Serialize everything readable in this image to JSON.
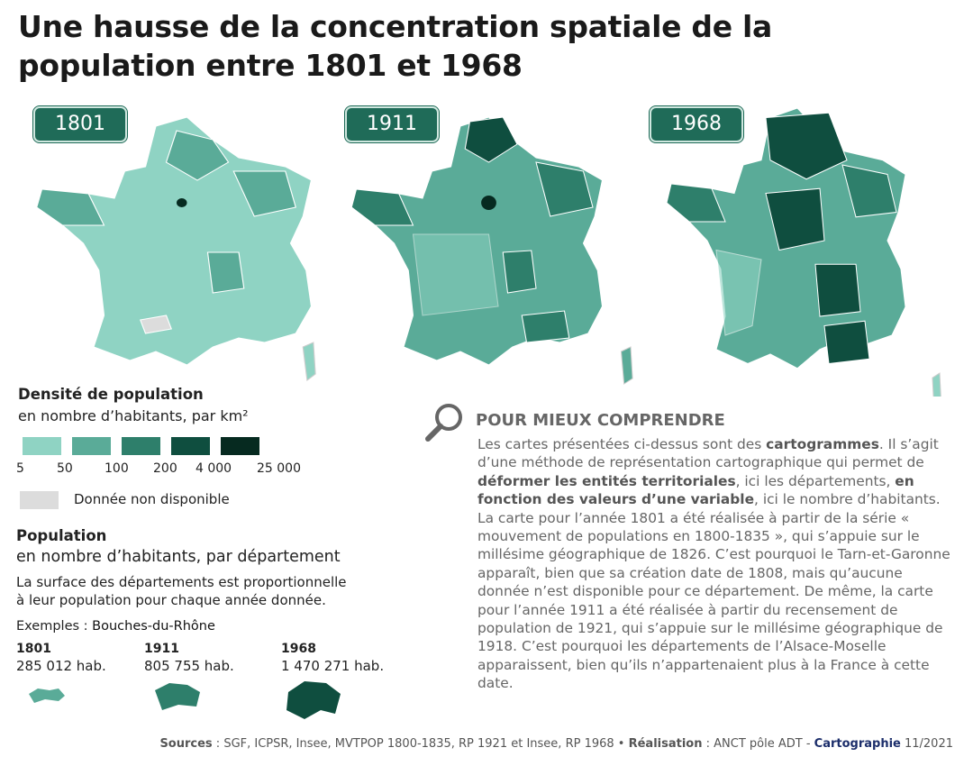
{
  "header": {
    "title": "Une hausse de la concentration spatiale de la population entre 1801 et 1968"
  },
  "maps": [
    {
      "year": "1801"
    },
    {
      "year": "1911"
    },
    {
      "year": "1968"
    }
  ],
  "density_legend": {
    "title": "Densité de population",
    "subtitle": "en nombre d’habitants, par km²",
    "colors": [
      "#8fd3c3",
      "#5aab98",
      "#2e7f6b",
      "#0f4e3f",
      "#062a20"
    ],
    "ticks": [
      "5",
      "50",
      "100",
      "200",
      "4 000",
      "25 000"
    ],
    "missing": {
      "color": "#dcdcdc",
      "label": "Donnée non disponible"
    }
  },
  "population_legend": {
    "title": "Population",
    "subtitle": "en nombre d’habitants, par département",
    "description": [
      "La surface des départements est proportionnelle",
      "à leur population pour chaque année donnée."
    ],
    "examples_label": "Exemples :",
    "examples_place": "Bouches-du-Rhône",
    "examples": [
      {
        "year": "1801",
        "value": "285 012 hab."
      },
      {
        "year": "1911",
        "value": "805 755 hab."
      },
      {
        "year": "1968",
        "value": "1 470 271 hab."
      }
    ]
  },
  "explanation": {
    "heading": "POUR MIEUX COMPRENDRE",
    "segments": [
      {
        "text": "Les cartes présentées ci-dessus sont des ",
        "bold": false
      },
      {
        "text": "cartogrammes",
        "bold": true
      },
      {
        "text": ". Il s’agit d’une méthode de représentation cartographique qui permet de ",
        "bold": false
      },
      {
        "text": "déformer les entités territoriales",
        "bold": true
      },
      {
        "text": ", ici les départements, ",
        "bold": false
      },
      {
        "text": "en fonction des valeurs d’une variable",
        "bold": true
      },
      {
        "text": ", ici le nombre d’habitants. La carte pour l’année 1801 a été réalisée à partir de la série « mouvement de populations en 1800-1835 », qui s’appuie sur le millésime géographique de 1826. C’est pourquoi le Tarn-et-Garonne apparaît, bien que sa création date de 1808, mais qu’aucune donnée n’est disponible pour ce département. De même, la carte pour l’année 1911 a été réalisée à partir du recensement de population de 1921, qui s’appuie sur le millésime géographique de 1918. C’est pourquoi les départements de l’Alsace-Moselle apparaissent, bien qu’ils n’appartenaient plus à la France à cette date.",
        "bold": false
      }
    ]
  },
  "footer": {
    "segments": [
      {
        "text": "Sources",
        "style": "bold"
      },
      {
        "text": " : SGF, ICPSR, Insee, MVTPOP 1800-1835, RP 1921 et Insee, RP 1968 • ",
        "style": "normal"
      },
      {
        "text": "Réalisation",
        "style": "bold"
      },
      {
        "text": " : ANCT pôle ADT - ",
        "style": "normal"
      },
      {
        "text": "Cartographie",
        "style": "navy"
      },
      {
        "text": " 11/2021",
        "style": "normal"
      }
    ]
  }
}
